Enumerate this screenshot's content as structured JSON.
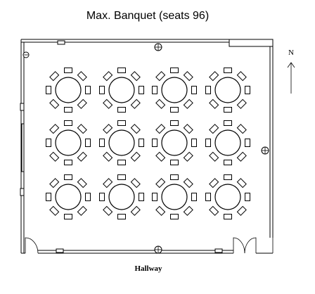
{
  "title": "Max. Banquet (seats 96)",
  "compass": {
    "label": "N"
  },
  "hallway_label": "Hallway",
  "layout": {
    "table_rows": 3,
    "table_columns": 4,
    "seats_per_table": 8,
    "total_seats": 96
  },
  "icons": {
    "table": "round-banquet-table-icon",
    "seat": "chair-icon",
    "outlet": "floor-outlet-icon",
    "door": "door-swing-icon",
    "north_arrow": "north-arrow-icon"
  }
}
